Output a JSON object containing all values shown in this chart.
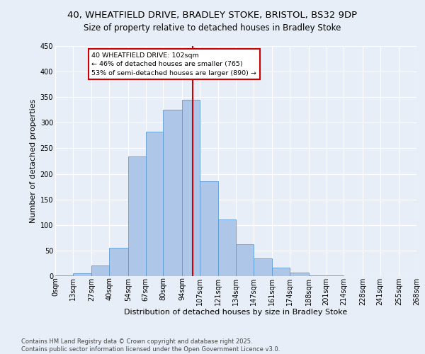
{
  "title_line1": "40, WHEATFIELD DRIVE, BRADLEY STOKE, BRISTOL, BS32 9DP",
  "title_line2": "Size of property relative to detached houses in Bradley Stoke",
  "xlabel": "Distribution of detached houses by size in Bradley Stoke",
  "ylabel": "Number of detached properties",
  "footnote": "Contains HM Land Registry data © Crown copyright and database right 2025.\nContains public sector information licensed under the Open Government Licence v3.0.",
  "bin_labels": [
    "0sqm",
    "13sqm",
    "27sqm",
    "40sqm",
    "54sqm",
    "67sqm",
    "80sqm",
    "94sqm",
    "107sqm",
    "121sqm",
    "134sqm",
    "147sqm",
    "161sqm",
    "174sqm",
    "188sqm",
    "201sqm",
    "214sqm",
    "228sqm",
    "241sqm",
    "255sqm",
    "268sqm"
  ],
  "bin_edges": [
    0,
    13,
    27,
    40,
    54,
    67,
    80,
    94,
    107,
    121,
    134,
    147,
    161,
    174,
    188,
    201,
    214,
    228,
    241,
    255,
    268
  ],
  "bar_heights": [
    2,
    6,
    21,
    55,
    234,
    283,
    325,
    345,
    185,
    111,
    63,
    35,
    17,
    7,
    2,
    1,
    0,
    0,
    0,
    0
  ],
  "bar_color": "#aec6e8",
  "bar_edge_color": "#5b9bd5",
  "vline_x": 102,
  "vline_color": "#cc0000",
  "annotation_text": "40 WHEATFIELD DRIVE: 102sqm\n← 46% of detached houses are smaller (765)\n53% of semi-detached houses are larger (890) →",
  "annotation_box_color": "#ffffff",
  "annotation_box_edge": "#cc0000",
  "ylim": [
    0,
    450
  ],
  "yticks": [
    0,
    50,
    100,
    150,
    200,
    250,
    300,
    350,
    400,
    450
  ],
  "background_color": "#e8eef7",
  "title_fontsize": 9.5,
  "subtitle_fontsize": 8.5,
  "axis_label_fontsize": 8,
  "tick_fontsize": 7,
  "footnote_fontsize": 6
}
